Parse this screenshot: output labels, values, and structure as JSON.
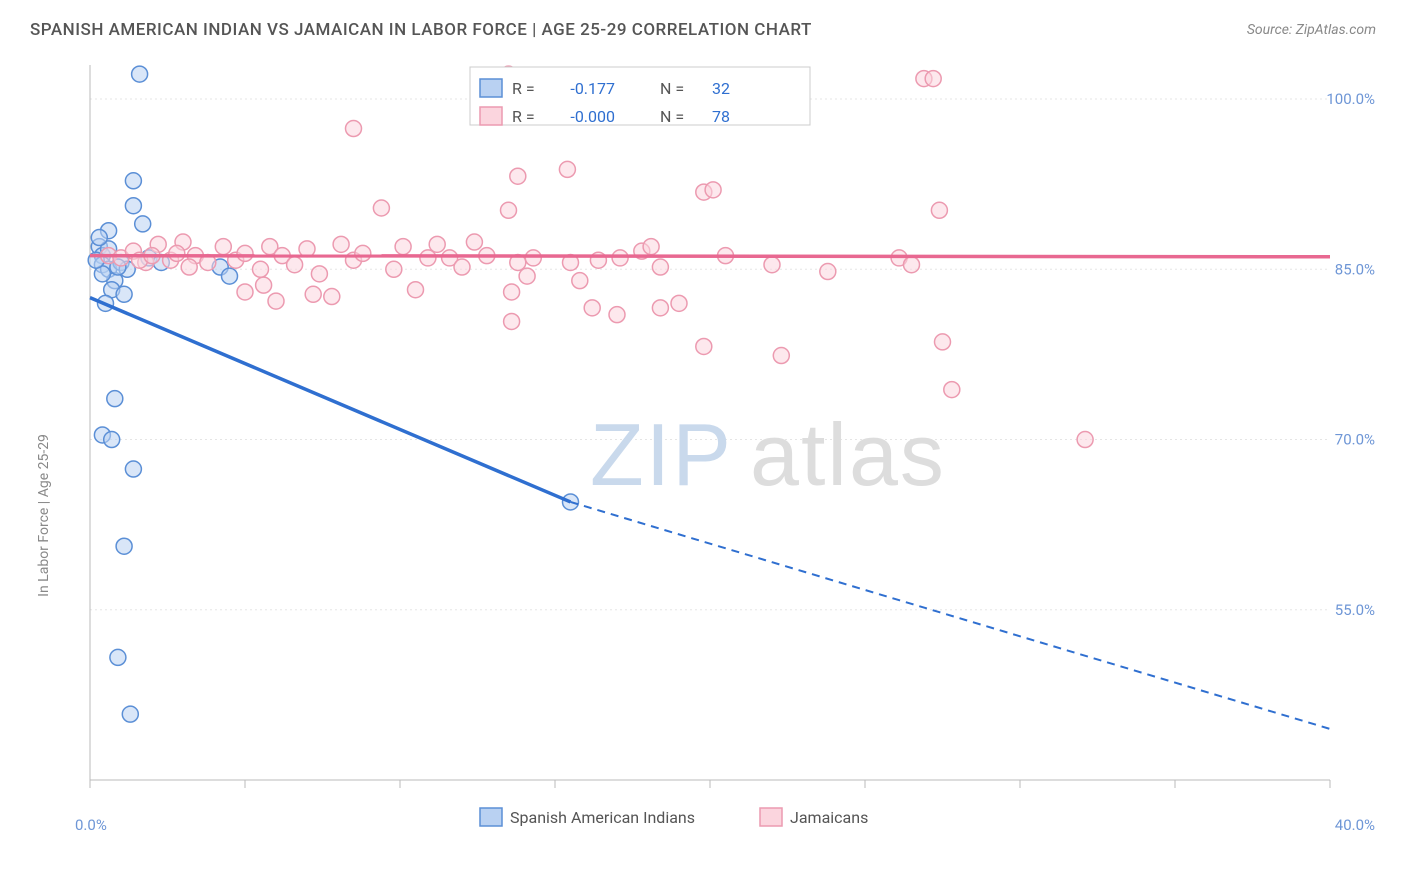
{
  "title": "SPANISH AMERICAN INDIAN VS JAMAICAN IN LABOR FORCE | AGE 25-29 CORRELATION CHART",
  "source_label": "Source: ",
  "source_name": "ZipAtlas.com",
  "y_axis_label": "In Labor Force | Age 25-29",
  "watermark_a": "ZIP",
  "watermark_b": "atlas",
  "chart": {
    "background_color": "#ffffff",
    "grid_color": "#e5e5e5",
    "border_color": "#bbbbbb",
    "tick_label_color": "#6e96d6",
    "axis_label_color": "#888888",
    "xlim": [
      0,
      40
    ],
    "ylim": [
      40,
      103
    ],
    "y_ticks": [
      55.0,
      70.0,
      85.0,
      100.0
    ],
    "y_tick_labels": [
      "55.0%",
      "70.0%",
      "85.0%",
      "100.0%"
    ],
    "x_ticks": [
      0,
      5,
      10,
      15,
      20,
      25,
      30,
      35,
      40
    ],
    "x_tick_labels": [
      "0.0%",
      "",
      "",
      "",
      "",
      "",
      "",
      "",
      "40.0%"
    ],
    "marker_radius": 8,
    "series": [
      {
        "name": "Spanish American Indians",
        "color_fill": "#b9d1f2",
        "color_stroke": "#5b8fd6",
        "line_color": "#2f6fd0",
        "r_label": "R =",
        "r_value": "-0.177",
        "n_label": "N =",
        "n_value": "32",
        "trend_start": {
          "x": 0,
          "y": 82.5
        },
        "trend_mid": {
          "x": 15.5,
          "y": 64.5
        },
        "trend_end": {
          "x": 40,
          "y": 44.5
        },
        "points": [
          {
            "x": 0.3,
            "y": 87.0
          },
          {
            "x": 0.4,
            "y": 86.2
          },
          {
            "x": 0.4,
            "y": 85.4
          },
          {
            "x": 0.6,
            "y": 85.0
          },
          {
            "x": 0.8,
            "y": 84.0
          },
          {
            "x": 0.6,
            "y": 86.8
          },
          {
            "x": 1.0,
            "y": 85.6
          },
          {
            "x": 1.2,
            "y": 85.0
          },
          {
            "x": 0.6,
            "y": 88.4
          },
          {
            "x": 1.6,
            "y": 102.2
          },
          {
            "x": 1.4,
            "y": 92.8
          },
          {
            "x": 1.4,
            "y": 90.6
          },
          {
            "x": 1.7,
            "y": 89.0
          },
          {
            "x": 0.7,
            "y": 83.2
          },
          {
            "x": 1.1,
            "y": 82.8
          },
          {
            "x": 0.5,
            "y": 82.0
          },
          {
            "x": 0.3,
            "y": 87.8
          },
          {
            "x": 1.9,
            "y": 86.0
          },
          {
            "x": 4.2,
            "y": 85.2
          },
          {
            "x": 4.5,
            "y": 84.4
          },
          {
            "x": 0.8,
            "y": 73.6
          },
          {
            "x": 0.4,
            "y": 70.4
          },
          {
            "x": 0.7,
            "y": 70.0
          },
          {
            "x": 1.4,
            "y": 67.4
          },
          {
            "x": 1.1,
            "y": 60.6
          },
          {
            "x": 0.9,
            "y": 50.8
          },
          {
            "x": 1.3,
            "y": 45.8
          },
          {
            "x": 15.5,
            "y": 64.5
          },
          {
            "x": 2.3,
            "y": 85.6
          },
          {
            "x": 0.4,
            "y": 84.6
          },
          {
            "x": 0.2,
            "y": 85.8
          },
          {
            "x": 0.9,
            "y": 85.2
          }
        ]
      },
      {
        "name": "Jamaicans",
        "color_fill": "#fbd5de",
        "color_stroke": "#ec9ab0",
        "line_color": "#e86891",
        "r_label": "R =",
        "r_value": "-0.000",
        "n_label": "N =",
        "n_value": "78",
        "trend_start": {
          "x": 0,
          "y": 86.2
        },
        "trend_mid": {
          "x": 40,
          "y": 86.1
        },
        "trend_end": {
          "x": 40,
          "y": 86.1
        },
        "points": [
          {
            "x": 0.6,
            "y": 86.2
          },
          {
            "x": 1.0,
            "y": 86.0
          },
          {
            "x": 1.4,
            "y": 86.6
          },
          {
            "x": 1.8,
            "y": 85.6
          },
          {
            "x": 2.2,
            "y": 87.2
          },
          {
            "x": 2.6,
            "y": 85.8
          },
          {
            "x": 3.0,
            "y": 87.4
          },
          {
            "x": 3.4,
            "y": 86.2
          },
          {
            "x": 3.8,
            "y": 85.6
          },
          {
            "x": 4.3,
            "y": 87.0
          },
          {
            "x": 4.7,
            "y": 85.8
          },
          {
            "x": 5.0,
            "y": 86.4
          },
          {
            "x": 5.5,
            "y": 85.0
          },
          {
            "x": 5.8,
            "y": 87.0
          },
          {
            "x": 6.2,
            "y": 86.2
          },
          {
            "x": 6.6,
            "y": 85.4
          },
          {
            "x": 7.0,
            "y": 86.8
          },
          {
            "x": 7.4,
            "y": 84.6
          },
          {
            "x": 7.8,
            "y": 82.6
          },
          {
            "x": 8.1,
            "y": 87.2
          },
          {
            "x": 8.5,
            "y": 85.8
          },
          {
            "x": 8.8,
            "y": 86.4
          },
          {
            "x": 9.4,
            "y": 90.4
          },
          {
            "x": 9.8,
            "y": 85.0
          },
          {
            "x": 10.1,
            "y": 87.0
          },
          {
            "x": 10.5,
            "y": 83.2
          },
          {
            "x": 10.9,
            "y": 86.0
          },
          {
            "x": 11.2,
            "y": 87.2
          },
          {
            "x": 11.6,
            "y": 86.0
          },
          {
            "x": 12.0,
            "y": 85.2
          },
          {
            "x": 12.4,
            "y": 87.4
          },
          {
            "x": 12.8,
            "y": 86.2
          },
          {
            "x": 13.2,
            "y": 102.0
          },
          {
            "x": 13.5,
            "y": 102.2
          },
          {
            "x": 13.5,
            "y": 90.2
          },
          {
            "x": 13.8,
            "y": 85.6
          },
          {
            "x": 13.6,
            "y": 83.0
          },
          {
            "x": 13.6,
            "y": 80.4
          },
          {
            "x": 13.8,
            "y": 93.2
          },
          {
            "x": 14.1,
            "y": 84.4
          },
          {
            "x": 14.3,
            "y": 86.0
          },
          {
            "x": 8.5,
            "y": 97.4
          },
          {
            "x": 15.4,
            "y": 93.8
          },
          {
            "x": 15.5,
            "y": 85.6
          },
          {
            "x": 15.8,
            "y": 84.0
          },
          {
            "x": 16.4,
            "y": 102.0
          },
          {
            "x": 16.2,
            "y": 81.6
          },
          {
            "x": 16.4,
            "y": 85.8
          },
          {
            "x": 17.0,
            "y": 81.0
          },
          {
            "x": 17.1,
            "y": 86.0
          },
          {
            "x": 17.8,
            "y": 86.6
          },
          {
            "x": 18.1,
            "y": 87.0
          },
          {
            "x": 18.4,
            "y": 85.2
          },
          {
            "x": 18.4,
            "y": 81.6
          },
          {
            "x": 19.0,
            "y": 82.0
          },
          {
            "x": 19.8,
            "y": 91.8
          },
          {
            "x": 19.8,
            "y": 78.2
          },
          {
            "x": 20.1,
            "y": 92.0
          },
          {
            "x": 20.5,
            "y": 86.2
          },
          {
            "x": 22.0,
            "y": 85.4
          },
          {
            "x": 22.3,
            "y": 77.4
          },
          {
            "x": 23.8,
            "y": 84.8
          },
          {
            "x": 26.1,
            "y": 86.0
          },
          {
            "x": 26.5,
            "y": 85.4
          },
          {
            "x": 26.9,
            "y": 101.8
          },
          {
            "x": 27.2,
            "y": 101.8
          },
          {
            "x": 27.4,
            "y": 90.2
          },
          {
            "x": 27.5,
            "y": 78.6
          },
          {
            "x": 27.8,
            "y": 74.4
          },
          {
            "x": 32.1,
            "y": 70.0
          },
          {
            "x": 5.0,
            "y": 83.0
          },
          {
            "x": 5.6,
            "y": 83.6
          },
          {
            "x": 6.0,
            "y": 82.2
          },
          {
            "x": 7.2,
            "y": 82.8
          },
          {
            "x": 2.8,
            "y": 86.4
          },
          {
            "x": 3.2,
            "y": 85.2
          },
          {
            "x": 1.6,
            "y": 85.8
          },
          {
            "x": 2.0,
            "y": 86.2
          }
        ]
      }
    ]
  },
  "bottom_legend": {
    "series_a": "Spanish American Indians",
    "series_b": "Jamaicans"
  },
  "columns_src": "#page-data"
}
